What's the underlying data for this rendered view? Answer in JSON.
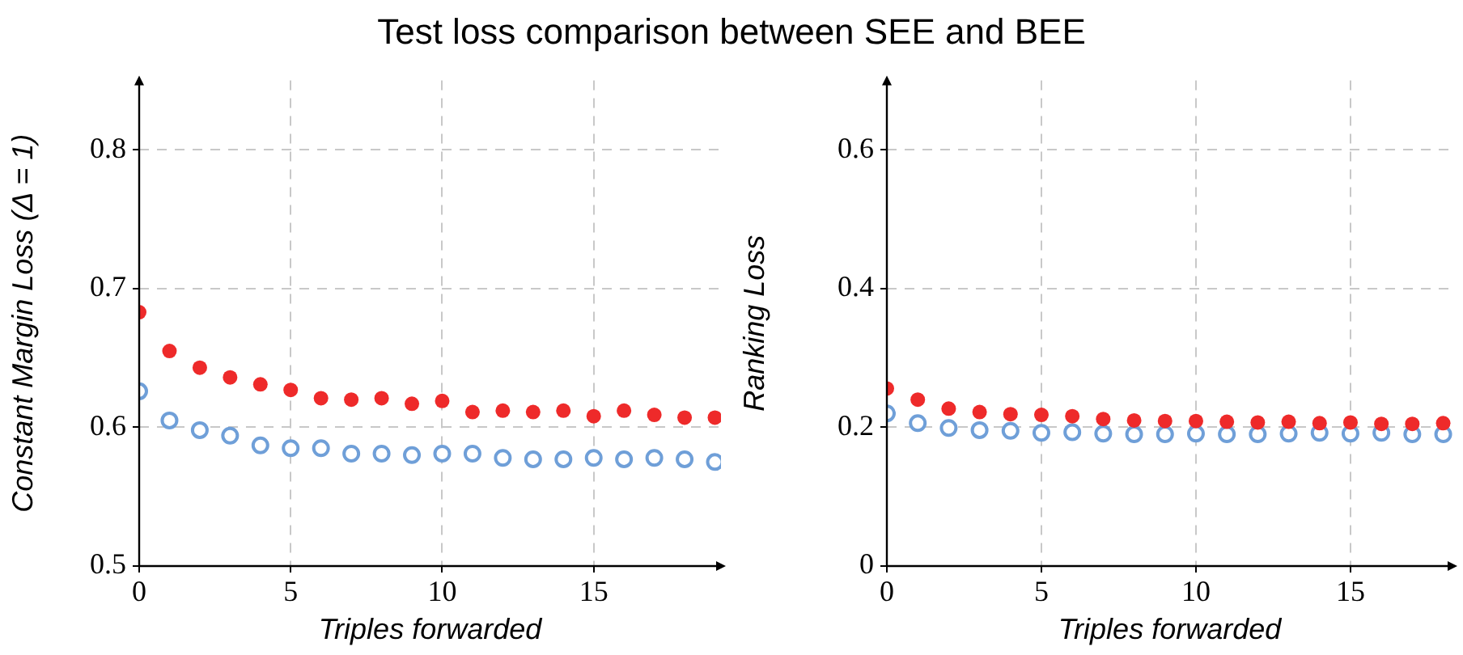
{
  "chart_data": [
    {
      "type": "scatter",
      "title": "Test loss comparison between SEE and BEE",
      "xlabel": "Triples forwarded",
      "ylabel": "Constant Margin Loss (Δ = 1)",
      "x": [
        0,
        1,
        2,
        3,
        4,
        5,
        6,
        7,
        8,
        9,
        10,
        11,
        12,
        13,
        14,
        15,
        16,
        17,
        18,
        19
      ],
      "series": [
        {
          "color": "#ee2a2a",
          "values": [
            0.683,
            0.655,
            0.643,
            0.636,
            0.631,
            0.627,
            0.621,
            0.62,
            0.621,
            0.617,
            0.619,
            0.611,
            0.612,
            0.611,
            0.612,
            0.608,
            0.612,
            0.609,
            0.607,
            0.607
          ]
        },
        {
          "color": "#6f9fd8",
          "values": [
            0.626,
            0.605,
            0.598,
            0.594,
            0.587,
            0.585,
            0.585,
            0.581,
            0.581,
            0.58,
            0.581,
            0.581,
            0.578,
            0.577,
            0.577,
            0.578,
            0.577,
            0.578,
            0.577,
            0.575
          ]
        }
      ],
      "xlim": [
        0,
        19.2
      ],
      "ylim": [
        0.5,
        0.85
      ],
      "xticks": [
        0,
        5,
        10,
        15
      ],
      "yticks": [
        0.5,
        0.6,
        0.7,
        0.8
      ],
      "grid": true,
      "legend": false,
      "marker": "circle"
    },
    {
      "type": "scatter",
      "xlabel": "Triples forwarded",
      "ylabel": "Ranking Loss",
      "x": [
        0,
        1,
        2,
        3,
        4,
        5,
        6,
        7,
        8,
        9,
        10,
        11,
        12,
        13,
        14,
        15,
        16,
        17,
        18
      ],
      "series": [
        {
          "color": "#ee2a2a",
          "values": [
            0.256,
            0.24,
            0.227,
            0.222,
            0.219,
            0.218,
            0.216,
            0.212,
            0.21,
            0.209,
            0.209,
            0.208,
            0.207,
            0.208,
            0.206,
            0.207,
            0.205,
            0.205,
            0.206
          ]
        },
        {
          "color": "#6f9fd8",
          "values": [
            0.22,
            0.206,
            0.199,
            0.196,
            0.195,
            0.192,
            0.193,
            0.191,
            0.19,
            0.19,
            0.191,
            0.19,
            0.19,
            0.191,
            0.192,
            0.191,
            0.192,
            0.19,
            0.19
          ]
        }
      ],
      "xlim": [
        0,
        18.3
      ],
      "ylim": [
        0,
        0.7
      ],
      "xticks": [
        0,
        5,
        10,
        15
      ],
      "yticks": [
        0,
        0.2,
        0.4,
        0.6
      ],
      "grid": true,
      "legend": false,
      "marker": "circle"
    }
  ]
}
